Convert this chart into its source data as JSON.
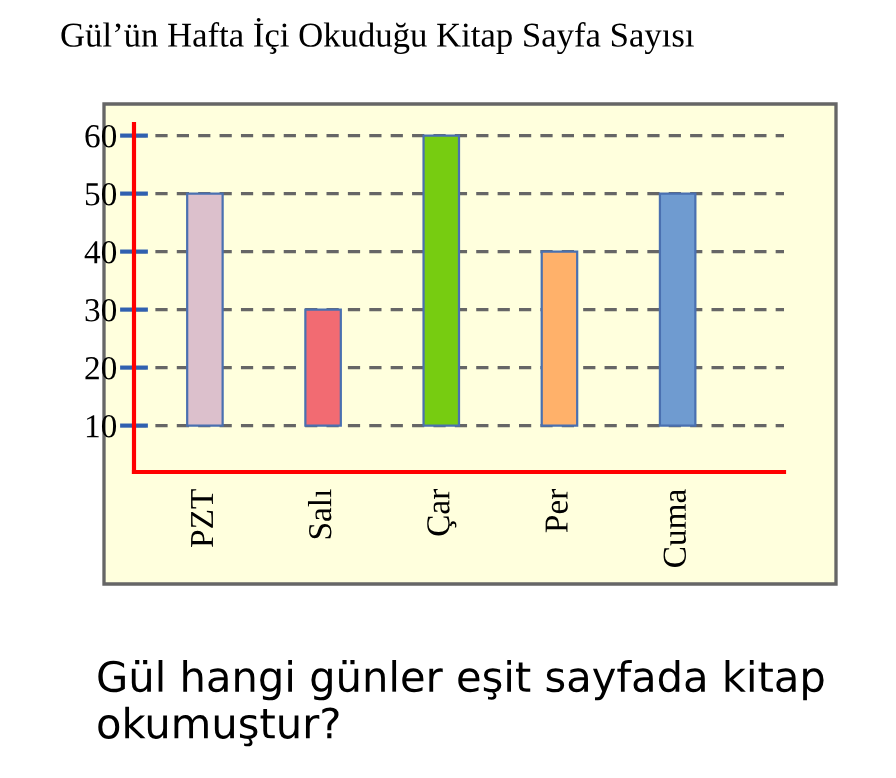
{
  "chart_data": {
    "type": "bar",
    "title": "Gül’ün Hafta İçi Okuduğu Kitap Sayfa Sayısı",
    "categories": [
      "PZT",
      "Salı",
      "Çar",
      "Per",
      "Cuma"
    ],
    "base": [
      10,
      10,
      10,
      10,
      10
    ],
    "values": [
      40,
      20,
      50,
      30,
      40
    ],
    "colors": [
      "#dcc0cc",
      "#f26b72",
      "#77cc11",
      "#ffb16a",
      "#6f9bd0"
    ],
    "ylim": [
      2,
      62
    ],
    "yticks": [
      10,
      20,
      30,
      40,
      50,
      60
    ],
    "grid": "y",
    "annotations": [
      "Gül hangi günler eşit sayfada kitap okumuştur?"
    ]
  }
}
